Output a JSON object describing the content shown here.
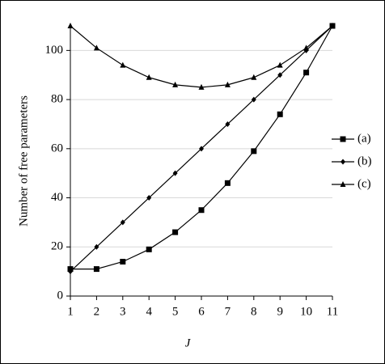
{
  "chart_data": {
    "type": "line",
    "x": [
      1,
      2,
      3,
      4,
      5,
      6,
      7,
      8,
      9,
      10,
      11
    ],
    "xlabel": "J",
    "ylabel": "Number of free parameters",
    "xlim": [
      1,
      11
    ],
    "xticks": [
      1,
      2,
      3,
      4,
      5,
      6,
      7,
      8,
      9,
      10,
      11
    ],
    "ylim": [
      0,
      110
    ],
    "yticks": [
      0,
      20,
      40,
      60,
      80,
      100
    ],
    "grid": true,
    "legend": "right",
    "series": [
      {
        "name": "(a)",
        "color": "#000000",
        "marker": "square",
        "values": [
          11,
          11,
          14,
          19,
          26,
          35,
          46,
          59,
          74,
          91,
          110
        ]
      },
      {
        "name": "(b)",
        "color": "#000000",
        "marker": "diamond",
        "values": [
          10,
          20,
          30,
          40,
          50,
          60,
          70,
          80,
          90,
          100,
          110
        ]
      },
      {
        "name": "(c)",
        "color": "#000000",
        "marker": "triangle",
        "values": [
          110,
          101,
          94,
          89,
          86,
          85,
          86,
          89,
          94,
          101,
          110
        ]
      }
    ]
  }
}
